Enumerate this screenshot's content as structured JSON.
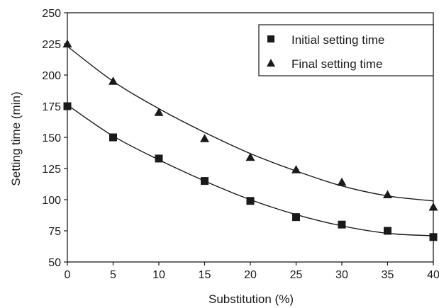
{
  "chart_data": {
    "type": "scatter",
    "title": "",
    "xlabel": "Substitution (%)",
    "ylabel": "Setting time (min)",
    "xlim": [
      0,
      40
    ],
    "ylim": [
      50,
      250
    ],
    "xticks": [
      0,
      5,
      10,
      15,
      20,
      25,
      30,
      35,
      40
    ],
    "yticks": [
      50,
      75,
      100,
      125,
      150,
      175,
      200,
      225,
      250
    ],
    "grid": false,
    "legend_position": "top-right",
    "x": [
      0,
      5,
      10,
      15,
      20,
      25,
      30,
      35,
      40
    ],
    "series": [
      {
        "name": "Initial setting time",
        "marker": "square",
        "values": [
          175,
          150,
          133,
          115,
          99,
          86,
          80,
          75,
          70
        ],
        "trend": [
          176,
          151,
          132,
          115,
          100,
          88,
          79,
          73,
          71
        ]
      },
      {
        "name": "Final setting time",
        "marker": "triangle",
        "values": [
          225,
          195,
          170,
          149,
          134,
          124,
          114,
          104,
          94
        ],
        "trend": [
          223,
          195,
          173,
          154,
          137,
          123,
          111,
          103,
          99
        ]
      }
    ],
    "colors": {
      "marker": "#1a1a1a",
      "line": "#1a1a1a",
      "background": "#ffffff"
    }
  }
}
